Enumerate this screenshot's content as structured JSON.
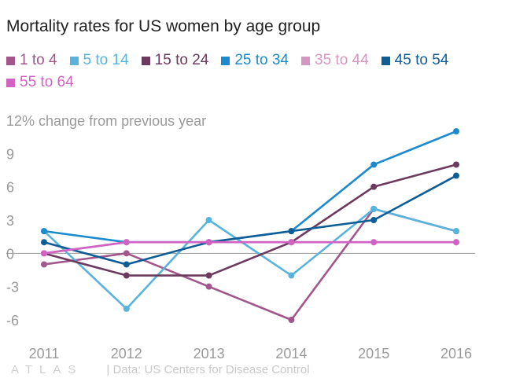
{
  "chart_data": {
    "type": "line",
    "title": "Mortality rates for US women by age group",
    "subtitle": "",
    "xlabel": "",
    "ylabel": "",
    "y_top_label": "12% change from previous year",
    "x": [
      "2011",
      "2012",
      "2013",
      "2014",
      "2015",
      "2016"
    ],
    "ylim": [
      -7.5,
      12.5
    ],
    "yticks": [
      -6,
      -3,
      0,
      3,
      6,
      9,
      12
    ],
    "ytick_labels": [
      "-6",
      "-3",
      "0",
      "3",
      "6",
      "9",
      ""
    ],
    "grid": false,
    "zero_line": true,
    "legend_position": "top",
    "series": [
      {
        "name": "1 to 4",
        "color": "#a2568b",
        "values": [
          -1,
          0,
          -3,
          -6,
          4,
          2
        ]
      },
      {
        "name": "5 to 14",
        "color": "#58b4dd",
        "values": [
          2,
          -5,
          3,
          -2,
          4,
          2
        ]
      },
      {
        "name": "15 to 24",
        "color": "#6b3a5c",
        "values": [
          0,
          -2,
          -2,
          1,
          6,
          8
        ]
      },
      {
        "name": "25 to 34",
        "color": "#1c8bcd",
        "values": [
          2,
          1,
          1,
          2,
          8,
          11
        ]
      },
      {
        "name": "35 to 44",
        "color": "#d397c1",
        "values": [
          0,
          1,
          1,
          1,
          1,
          1
        ]
      },
      {
        "name": "45 to 54",
        "color": "#0f5d97",
        "values": [
          1,
          -1,
          1,
          2,
          3,
          7
        ]
      },
      {
        "name": "55 to 64",
        "color": "#d062c3",
        "values": [
          0,
          1,
          1,
          1,
          1,
          1
        ]
      }
    ]
  },
  "footer": {
    "brand": "ATLAS",
    "source": "| Data: US Centers for Disease Control"
  },
  "colors": {
    "axis_text": "#9a9a9a",
    "zero_line": "#999999",
    "footer_text": "#c9c9c9"
  }
}
